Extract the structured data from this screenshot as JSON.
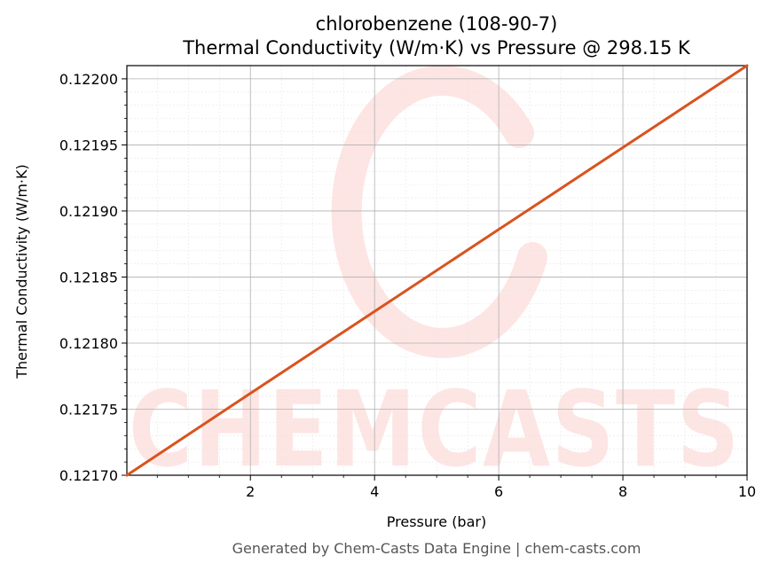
{
  "chart_data": {
    "type": "line",
    "title": "chlorobenzene (108-90-7)",
    "subtitle": "Thermal Conductivity (W/m·K) vs Pressure @ 298.15 K",
    "xlabel": "Pressure (bar)",
    "ylabel": "Thermal Conductivity (W/m·K)",
    "xlim": [
      0.01,
      10
    ],
    "ylim": [
      0.1217,
      0.12201
    ],
    "xticks": [
      2,
      4,
      6,
      8,
      10
    ],
    "xtick_labels": [
      "2",
      "4",
      "6",
      "8",
      "10"
    ],
    "yticks": [
      0.1217,
      0.12175,
      0.1218,
      0.12185,
      0.1219,
      0.12195,
      0.122
    ],
    "ytick_labels": [
      "0.12170",
      "0.12175",
      "0.12180",
      "0.12185",
      "0.12190",
      "0.12195",
      "0.12200"
    ],
    "grid": true,
    "series": [
      {
        "color": "#d9531e",
        "x": [
          0.01,
          2,
          4,
          6,
          8,
          10
        ],
        "y": [
          0.1217,
          0.121762,
          0.121824,
          0.121886,
          0.121948,
          0.12201
        ]
      }
    ]
  },
  "watermark": {
    "text": "CHEMCASTS",
    "color": "#fde5e3"
  },
  "footer": "Generated by Chem-Casts Data Engine | chem-casts.com"
}
